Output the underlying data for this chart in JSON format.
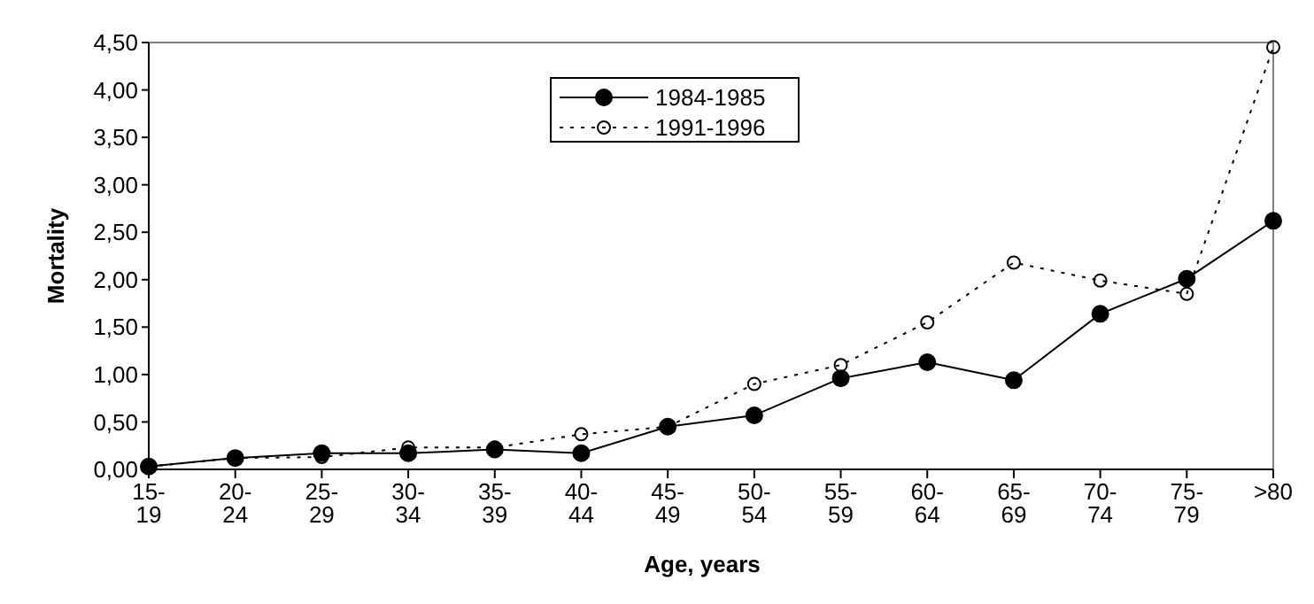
{
  "chart_data": {
    "type": "line",
    "xlabel": "Age, years",
    "ylabel": "Mortality",
    "categories": [
      "15-\n19",
      "20-\n24",
      "25-\n29",
      "30-\n34",
      "35-\n39",
      "40-\n44",
      "45-\n49",
      "50-\n54",
      "55-\n59",
      "60-\n64",
      "65-\n69",
      "70-\n74",
      "75-\n79",
      ">80"
    ],
    "series": [
      {
        "name": "1984-1985",
        "color": "#000000",
        "marker": "circle",
        "line_style": "solid",
        "values": [
          0.03,
          0.12,
          0.17,
          0.17,
          0.21,
          0.17,
          0.45,
          0.57,
          0.96,
          1.13,
          0.94,
          1.64,
          2.01,
          2.62
        ]
      },
      {
        "name": "1991-1996",
        "color": "#000000",
        "marker": "circle",
        "line_style": "dotted",
        "values": [
          0.03,
          0.12,
          0.13,
          0.23,
          0.23,
          0.37,
          0.45,
          0.9,
          1.1,
          1.55,
          2.18,
          1.99,
          1.85,
          4.45
        ]
      }
    ],
    "ylim": [
      0,
      4.5
    ],
    "yticks": [
      {
        "value": 0,
        "label": "0,00"
      },
      {
        "value": 0.5,
        "label": "0,50"
      },
      {
        "value": 1,
        "label": "1,00"
      },
      {
        "value": 1.5,
        "label": "1,50"
      },
      {
        "value": 2,
        "label": "2,00"
      },
      {
        "value": 2.5,
        "label": "2,50"
      },
      {
        "value": 3,
        "label": "3,00"
      },
      {
        "value": 3.5,
        "label": "3,50"
      },
      {
        "value": 4,
        "label": "4,00"
      },
      {
        "value": 4.5,
        "label": "4,50"
      }
    ],
    "grid": false,
    "legend": "top"
  }
}
